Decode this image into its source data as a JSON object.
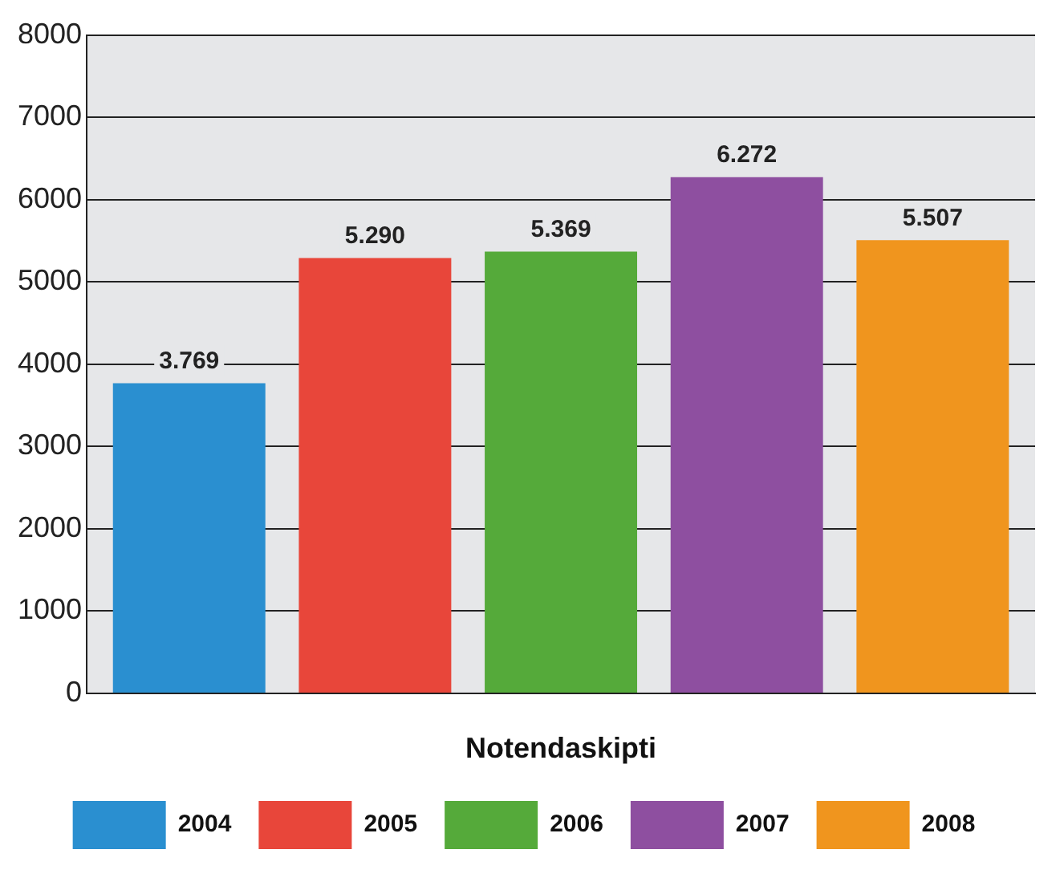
{
  "chart_data": {
    "type": "bar",
    "xlabel": "Notendaskipti",
    "categories": [
      null
    ],
    "series": [
      {
        "name": "2004",
        "color": "#2a8fd0",
        "values": [
          3769
        ],
        "value_labels": [
          "3.769"
        ]
      },
      {
        "name": "2005",
        "color": "#e8463a",
        "values": [
          5290
        ],
        "value_labels": [
          "5.290"
        ]
      },
      {
        "name": "2006",
        "color": "#55aa3a",
        "values": [
          5369
        ],
        "value_labels": [
          "5.369"
        ]
      },
      {
        "name": "2007",
        "color": "#8e4fa0",
        "values": [
          6272
        ],
        "value_labels": [
          "6.272"
        ]
      },
      {
        "name": "2008",
        "color": "#f0951e",
        "values": [
          5507
        ],
        "value_labels": [
          "5.507"
        ]
      }
    ],
    "ylim": [
      0,
      8000
    ],
    "yticks": [
      0,
      1000,
      2000,
      3000,
      4000,
      5000,
      6000,
      7000,
      8000
    ],
    "grid": "y",
    "legend": "bottom"
  }
}
